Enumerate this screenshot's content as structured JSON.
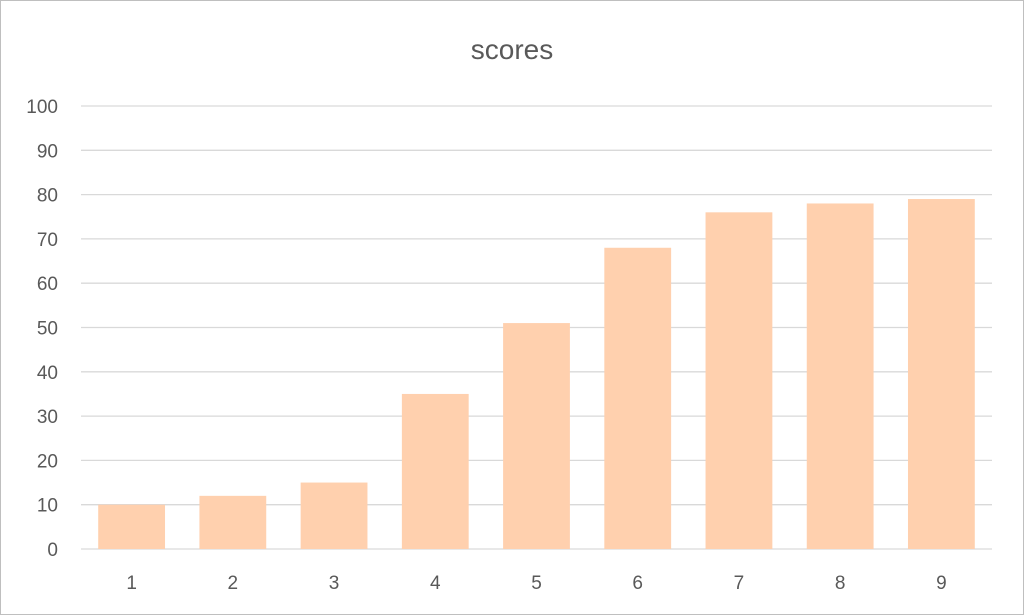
{
  "chart_data": {
    "type": "bar",
    "title": "scores",
    "categories": [
      "1",
      "2",
      "3",
      "4",
      "5",
      "6",
      "7",
      "8",
      "9"
    ],
    "values": [
      10,
      12,
      15,
      35,
      51,
      68,
      76,
      78,
      79
    ],
    "ylim": [
      0,
      100
    ],
    "yticks": [
      "0",
      "10",
      "20",
      "30",
      "40",
      "50",
      "60",
      "70",
      "80",
      "90",
      "100"
    ],
    "grid": true,
    "legend": "none",
    "bar_color": "#FFD0AE",
    "grid_color": "#D9D9D9",
    "text_color": "#595959"
  }
}
